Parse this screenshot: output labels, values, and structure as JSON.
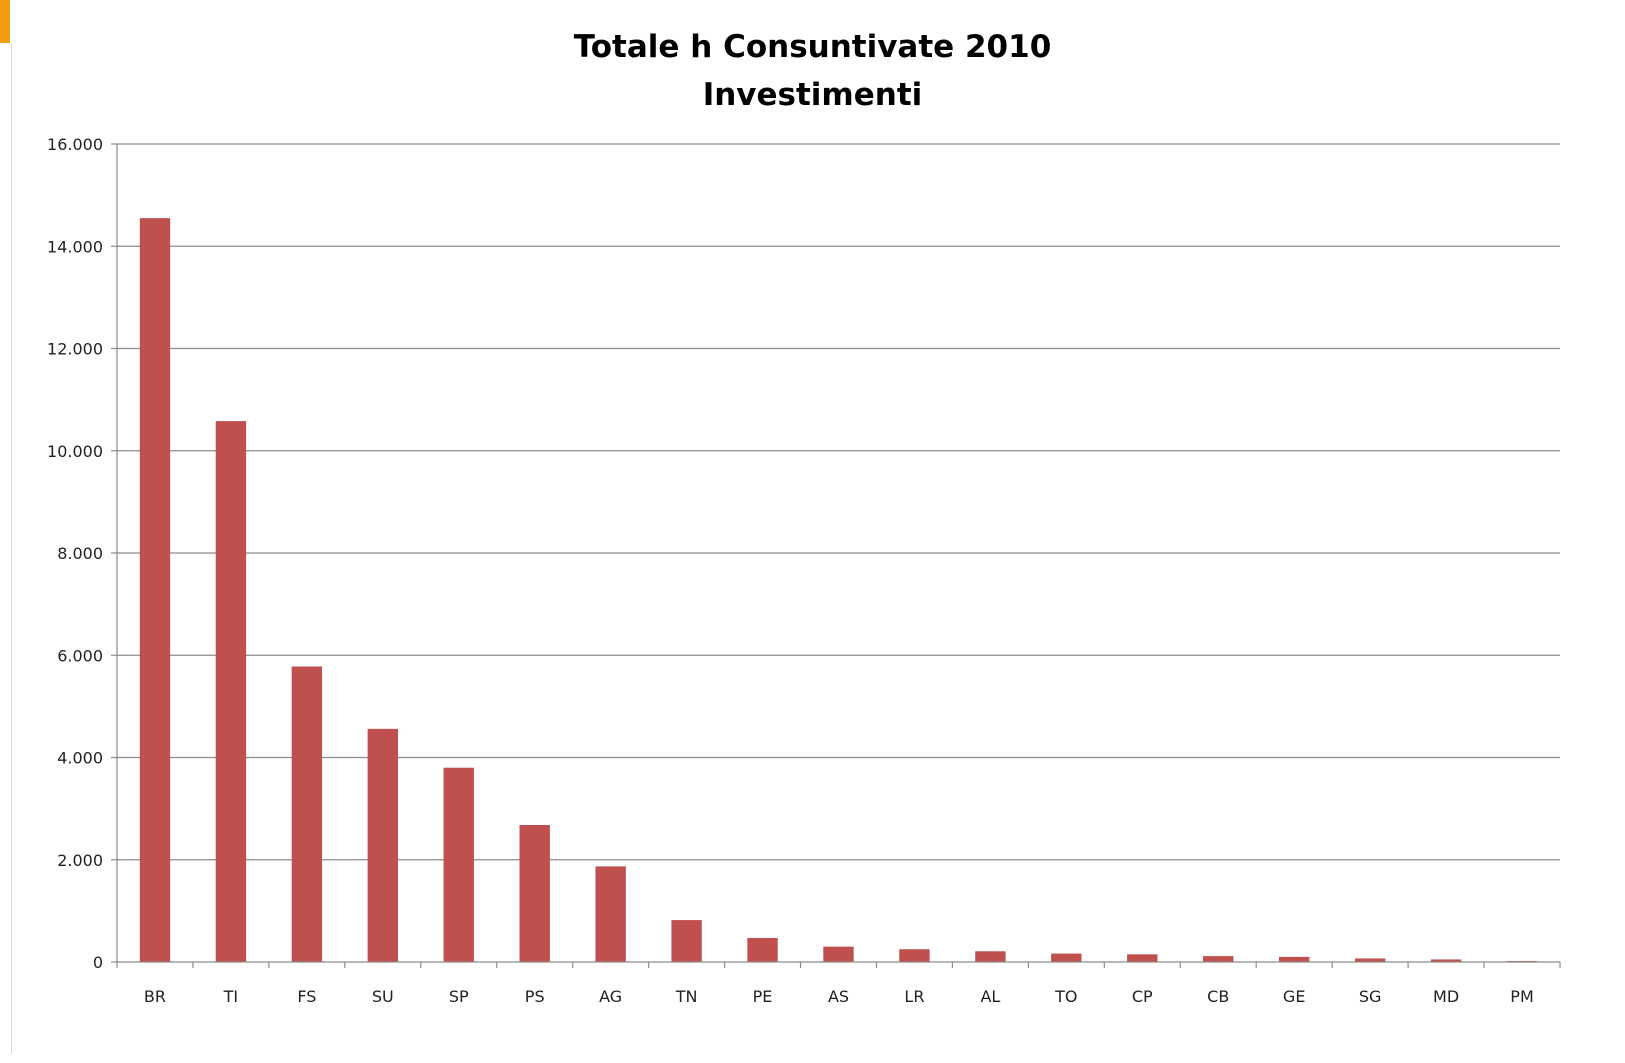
{
  "chart_data": {
    "type": "bar",
    "title": "Totale h Consuntivate 2010",
    "subtitle": "Investimenti",
    "xlabel": "",
    "ylabel": "",
    "categories": [
      "BR",
      "TI",
      "FS",
      "SU",
      "SP",
      "PS",
      "AG",
      "TN",
      "PE",
      "AS",
      "LR",
      "AL",
      "TO",
      "CP",
      "CB",
      "GE",
      "SG",
      "MD",
      "PM"
    ],
    "values": [
      14550,
      10580,
      5780,
      4560,
      3800,
      2680,
      1870,
      820,
      470,
      300,
      250,
      210,
      165,
      150,
      115,
      100,
      70,
      50,
      20
    ],
    "ylim": [
      0,
      16000
    ],
    "yticks": [
      0,
      2000,
      4000,
      6000,
      8000,
      10000,
      12000,
      14000,
      16000
    ],
    "ytick_labels": [
      "0",
      "2.000",
      "4.000",
      "6.000",
      "8.000",
      "10.000",
      "12.000",
      "14.000",
      "16.000"
    ],
    "bar_color": "#c0504d",
    "grid": true,
    "legend": "none"
  }
}
